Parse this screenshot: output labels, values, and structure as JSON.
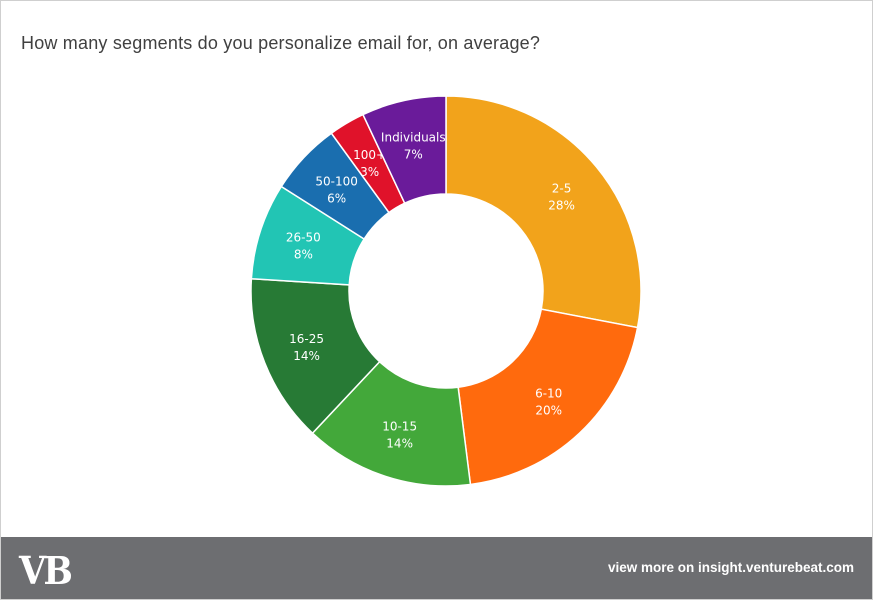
{
  "chart_data": {
    "type": "pie",
    "variant": "donut",
    "title": "How many segments do you personalize email for, on average?",
    "categories": [
      "2-5",
      "6-10",
      "10-15",
      "16-25",
      "26-50",
      "50-100",
      "100+",
      "Individuals"
    ],
    "values": [
      28,
      20,
      14,
      14,
      8,
      6,
      3,
      7
    ],
    "value_labels": [
      "28%",
      "20%",
      "14%",
      "14%",
      "8%",
      "6%",
      "3%",
      "7%"
    ],
    "colors": [
      "#f2a31b",
      "#ff6a0d",
      "#43a83a",
      "#277a35",
      "#22c5b4",
      "#1a6eaf",
      "#e0122a",
      "#6a1b9a"
    ],
    "start_angle_deg": 0,
    "direction": "clockwise",
    "legend": "none"
  },
  "footer": {
    "logo_text": "VB",
    "link_text": "view more on insight.venturebeat.com"
  }
}
